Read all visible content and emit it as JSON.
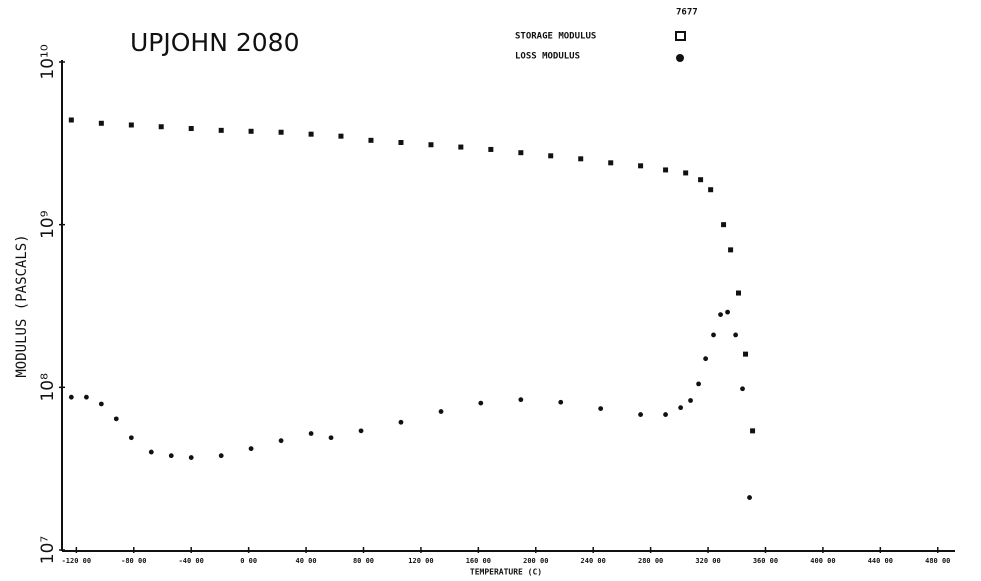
{
  "chart_data": {
    "type": "scatter",
    "title": "UPJOHN 2080",
    "annotation": "7677",
    "x_label": "TEMPERATURE (C)",
    "y_label": "MODULUS (PASCALS)",
    "log_y": true,
    "xlim": [
      -130,
      492
    ],
    "ylim": [
      10000000,
      10000000000
    ],
    "xticks": [
      {
        "value": -120,
        "label": "-120 00"
      },
      {
        "value": -80,
        "label": "-80 00"
      },
      {
        "value": -40,
        "label": "-40 00"
      },
      {
        "value": 0,
        "label": "0 00"
      },
      {
        "value": 40,
        "label": "40 00"
      },
      {
        "value": 80,
        "label": "80 00"
      },
      {
        "value": 120,
        "label": "120 00"
      },
      {
        "value": 160,
        "label": "160 00"
      },
      {
        "value": 200,
        "label": "200 00"
      },
      {
        "value": 240,
        "label": "240 00"
      },
      {
        "value": 280,
        "label": "280 00"
      },
      {
        "value": 320,
        "label": "320 00"
      },
      {
        "value": 360,
        "label": "360 00"
      },
      {
        "value": 400,
        "label": "400 00"
      },
      {
        "value": 440,
        "label": "440 00"
      },
      {
        "value": 480,
        "label": "480 00"
      }
    ],
    "yticks": [
      {
        "value": 10000000,
        "label": "10⁷"
      },
      {
        "value": 100000000,
        "label": "10⁸"
      },
      {
        "value": 1000000000,
        "label": "10⁹"
      },
      {
        "value": 10000000000,
        "label": "10¹⁰"
      }
    ],
    "series": [
      {
        "name": "STORAGE MODULUS",
        "color": "#111111",
        "marker": "square",
        "x": [
          -123.5,
          -102.6,
          -81.7,
          -60.9,
          -40,
          -19.1,
          1.7,
          22.6,
          43.5,
          64.3,
          85.2,
          106.1,
          127,
          147.8,
          168.7,
          189.6,
          210.4,
          231.3,
          252.2,
          273,
          290.4,
          304.4,
          314.8,
          321.8,
          330.8,
          335.7,
          341.2,
          346.1,
          351
        ],
        "values": [
          4400000000,
          4200000000,
          4100000000,
          4000000000,
          3900000000,
          3800000000,
          3750000000,
          3700000000,
          3600000000,
          3500000000,
          3300000000,
          3200000000,
          3100000000,
          3000000000,
          2900000000,
          2770000000,
          2650000000,
          2540000000,
          2400000000,
          2300000000,
          2170000000,
          2080000000,
          1890000000,
          1640000000,
          1000000000,
          700000000,
          380000000,
          160000000,
          54000000
        ]
      },
      {
        "name": "LOSS MODULUS",
        "color": "#111111",
        "marker": "circle",
        "x": [
          -123.5,
          -113,
          -102.6,
          -92.2,
          -81.7,
          -67.8,
          -53.9,
          -40,
          -19.1,
          1.7,
          22.6,
          43.5,
          57.4,
          78.3,
          106.1,
          134,
          161.7,
          189.6,
          217.4,
          245.2,
          273,
          290.4,
          300.9,
          307.8,
          313.4,
          318.3,
          323.8,
          328.7,
          333.6,
          339.2,
          344,
          348.9
        ],
        "values": [
          87000000,
          87000000,
          79000000,
          64000000,
          49000000,
          40000000,
          38000000,
          37000000,
          38000000,
          42000000,
          47000000,
          52000000,
          49000000,
          54000000,
          61000000,
          71000000,
          80000000,
          84000000,
          81000000,
          74000000,
          68000000,
          68000000,
          75000000,
          83000000,
          105000000,
          150000000,
          210000000,
          280000000,
          290000000,
          210000000,
          98000000,
          21000000
        ]
      }
    ]
  }
}
